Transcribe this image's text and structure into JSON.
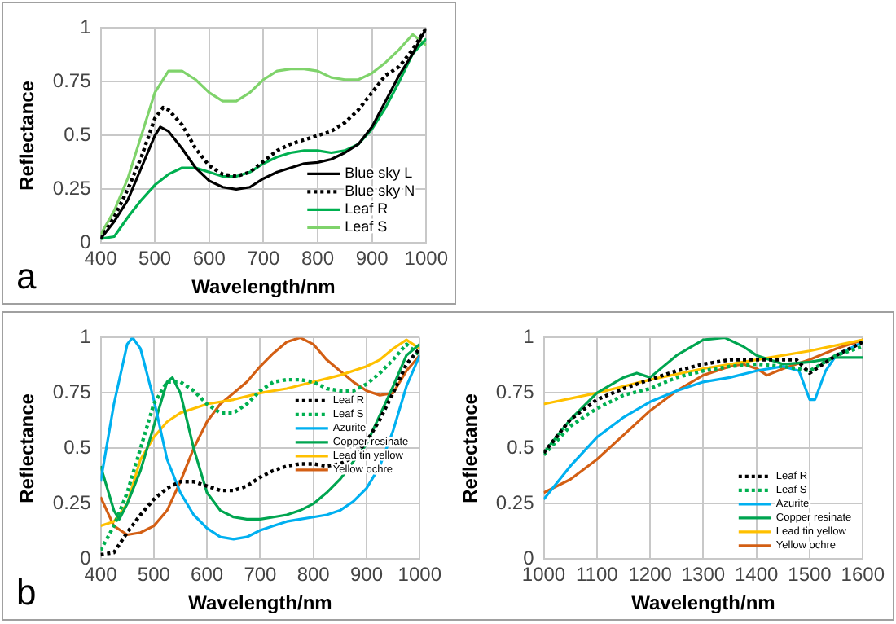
{
  "chart_data": [
    {
      "type": "line",
      "xlabel": "Wavelength/nm",
      "ylabel": "Reflectance",
      "xlim": [
        400,
        1000
      ],
      "xticks": [
        400,
        500,
        600,
        700,
        800,
        900,
        1000
      ],
      "ylim": [
        0,
        1
      ],
      "yticks": [
        0,
        0.25,
        0.5,
        0.75,
        1
      ],
      "grid": true,
      "legend": "bottom right",
      "annotations": [
        "a"
      ],
      "series": [
        {
          "name": "Blue sky L",
          "color": "#000000",
          "line_style": "solid",
          "x": [
            400,
            425,
            450,
            475,
            500,
            510,
            525,
            550,
            575,
            600,
            625,
            650,
            675,
            700,
            725,
            750,
            775,
            800,
            825,
            850,
            875,
            900,
            925,
            950,
            975,
            1000
          ],
          "values": [
            0.02,
            0.1,
            0.2,
            0.35,
            0.5,
            0.54,
            0.52,
            0.44,
            0.35,
            0.29,
            0.26,
            0.25,
            0.26,
            0.3,
            0.33,
            0.35,
            0.37,
            0.375,
            0.39,
            0.42,
            0.46,
            0.54,
            0.66,
            0.78,
            0.88,
            1.0
          ]
        },
        {
          "name": "Blue sky N",
          "color": "#000000",
          "line_style": "dotted",
          "x": [
            400,
            425,
            450,
            475,
            500,
            515,
            525,
            550,
            575,
            600,
            625,
            650,
            675,
            700,
            725,
            750,
            775,
            800,
            825,
            850,
            875,
            900,
            925,
            950,
            975,
            1000
          ],
          "values": [
            0.02,
            0.12,
            0.25,
            0.4,
            0.58,
            0.63,
            0.62,
            0.55,
            0.44,
            0.36,
            0.32,
            0.31,
            0.33,
            0.38,
            0.43,
            0.46,
            0.48,
            0.5,
            0.52,
            0.56,
            0.62,
            0.7,
            0.78,
            0.82,
            0.9,
            1.0
          ]
        },
        {
          "name": "Leaf R",
          "color": "#00b050",
          "line_style": "solid",
          "x": [
            400,
            425,
            450,
            475,
            500,
            525,
            550,
            575,
            600,
            625,
            650,
            675,
            700,
            725,
            750,
            775,
            800,
            825,
            850,
            875,
            900,
            925,
            950,
            975,
            1000
          ],
          "values": [
            0.02,
            0.03,
            0.12,
            0.2,
            0.27,
            0.32,
            0.35,
            0.35,
            0.33,
            0.31,
            0.31,
            0.33,
            0.37,
            0.4,
            0.42,
            0.43,
            0.43,
            0.42,
            0.43,
            0.46,
            0.53,
            0.63,
            0.75,
            0.88,
            0.95
          ]
        },
        {
          "name": "Leaf S",
          "color": "#7fd36b",
          "line_style": "solid",
          "x": [
            400,
            425,
            450,
            475,
            500,
            525,
            550,
            575,
            600,
            625,
            650,
            675,
            700,
            725,
            750,
            775,
            800,
            825,
            850,
            875,
            900,
            925,
            950,
            975,
            1000
          ],
          "values": [
            0.04,
            0.15,
            0.3,
            0.5,
            0.7,
            0.8,
            0.8,
            0.76,
            0.7,
            0.66,
            0.66,
            0.7,
            0.76,
            0.8,
            0.81,
            0.81,
            0.8,
            0.77,
            0.76,
            0.76,
            0.79,
            0.84,
            0.9,
            0.97,
            0.92
          ]
        }
      ]
    },
    {
      "type": "line",
      "xlabel": "Wavelength/nm",
      "ylabel": "Reflectance",
      "xlim": [
        400,
        1000
      ],
      "xticks": [
        400,
        500,
        600,
        700,
        800,
        900,
        1000
      ],
      "ylim": [
        0,
        1
      ],
      "yticks": [
        0,
        0.25,
        0.5,
        0.75,
        1
      ],
      "grid": true,
      "legend": "right",
      "annotations": [
        "b"
      ],
      "series": [
        {
          "name": "Leaf R",
          "color": "#000000",
          "line_style": "dotted",
          "x": [
            400,
            425,
            450,
            475,
            500,
            525,
            550,
            575,
            600,
            625,
            650,
            675,
            700,
            725,
            750,
            775,
            800,
            825,
            850,
            875,
            900,
            925,
            950,
            975,
            1000
          ],
          "values": [
            0.02,
            0.03,
            0.12,
            0.2,
            0.27,
            0.32,
            0.35,
            0.35,
            0.33,
            0.31,
            0.31,
            0.33,
            0.37,
            0.4,
            0.42,
            0.43,
            0.43,
            0.42,
            0.43,
            0.46,
            0.53,
            0.63,
            0.75,
            0.88,
            0.95
          ]
        },
        {
          "name": "Leaf S",
          "color": "#00b050",
          "line_style": "dotted",
          "x": [
            400,
            425,
            450,
            475,
            500,
            525,
            550,
            575,
            600,
            625,
            650,
            675,
            700,
            725,
            750,
            775,
            800,
            825,
            850,
            875,
            900,
            925,
            950,
            975,
            1000
          ],
          "values": [
            0.04,
            0.15,
            0.3,
            0.5,
            0.7,
            0.8,
            0.8,
            0.76,
            0.7,
            0.66,
            0.66,
            0.7,
            0.76,
            0.8,
            0.81,
            0.81,
            0.8,
            0.77,
            0.76,
            0.76,
            0.79,
            0.84,
            0.9,
            0.97,
            0.92
          ]
        },
        {
          "name": "Azurite",
          "color": "#00b0f0",
          "line_style": "solid",
          "x": [
            400,
            425,
            450,
            460,
            475,
            500,
            525,
            550,
            575,
            600,
            625,
            650,
            675,
            700,
            725,
            750,
            775,
            800,
            825,
            850,
            875,
            900,
            925,
            950,
            975,
            1000
          ],
          "values": [
            0.35,
            0.7,
            0.97,
            1.0,
            0.95,
            0.72,
            0.45,
            0.3,
            0.2,
            0.14,
            0.1,
            0.09,
            0.1,
            0.13,
            0.15,
            0.17,
            0.18,
            0.19,
            0.2,
            0.22,
            0.26,
            0.32,
            0.42,
            0.58,
            0.78,
            0.92
          ]
        },
        {
          "name": "Copper resinate",
          "color": "#00a550",
          "line_style": "solid",
          "x": [
            400,
            425,
            435,
            450,
            475,
            500,
            525,
            535,
            550,
            575,
            600,
            625,
            650,
            675,
            700,
            725,
            750,
            775,
            800,
            825,
            850,
            875,
            900,
            925,
            950,
            975,
            1000
          ],
          "values": [
            0.42,
            0.22,
            0.18,
            0.25,
            0.4,
            0.6,
            0.8,
            0.82,
            0.75,
            0.5,
            0.3,
            0.22,
            0.19,
            0.18,
            0.18,
            0.19,
            0.2,
            0.22,
            0.25,
            0.3,
            0.36,
            0.44,
            0.52,
            0.65,
            0.78,
            0.92,
            0.97
          ]
        },
        {
          "name": "Lead tin yellow",
          "color": "#ffc000",
          "line_style": "solid",
          "x": [
            400,
            425,
            450,
            475,
            500,
            525,
            550,
            575,
            600,
            650,
            700,
            750,
            800,
            850,
            900,
            925,
            950,
            975,
            1000
          ],
          "values": [
            0.15,
            0.17,
            0.25,
            0.45,
            0.55,
            0.62,
            0.66,
            0.68,
            0.7,
            0.72,
            0.75,
            0.77,
            0.8,
            0.83,
            0.87,
            0.9,
            0.95,
            0.99,
            0.95
          ]
        },
        {
          "name": "Yellow ochre",
          "color": "#d35f14",
          "line_style": "solid",
          "x": [
            400,
            425,
            450,
            475,
            500,
            525,
            550,
            575,
            600,
            625,
            650,
            675,
            700,
            725,
            750,
            775,
            800,
            825,
            850,
            875,
            900,
            925,
            950,
            975,
            1000
          ],
          "values": [
            0.28,
            0.15,
            0.11,
            0.12,
            0.15,
            0.22,
            0.35,
            0.5,
            0.62,
            0.7,
            0.75,
            0.8,
            0.87,
            0.93,
            0.98,
            1.0,
            0.97,
            0.9,
            0.85,
            0.8,
            0.76,
            0.74,
            0.75,
            0.85,
            0.92
          ]
        }
      ]
    },
    {
      "type": "line",
      "xlabel": "Wavelength/nm",
      "ylabel": "Reflectance",
      "xlim": [
        1000,
        1600
      ],
      "xticks": [
        1000,
        1100,
        1200,
        1300,
        1400,
        1500,
        1600
      ],
      "ylim": [
        0,
        1
      ],
      "yticks": [
        0,
        0.25,
        0.5,
        0.75,
        1
      ],
      "grid": true,
      "legend": "bottom right",
      "series": [
        {
          "name": "Leaf R",
          "color": "#000000",
          "line_style": "dotted",
          "x": [
            1000,
            1050,
            1100,
            1150,
            1200,
            1250,
            1300,
            1350,
            1400,
            1450,
            1475,
            1500,
            1550,
            1600
          ],
          "values": [
            0.48,
            0.63,
            0.72,
            0.77,
            0.81,
            0.85,
            0.88,
            0.9,
            0.9,
            0.9,
            0.9,
            0.84,
            0.92,
            0.98
          ]
        },
        {
          "name": "Leaf S",
          "color": "#00b050",
          "line_style": "dotted",
          "x": [
            1000,
            1050,
            1100,
            1150,
            1200,
            1250,
            1300,
            1350,
            1400,
            1450,
            1500,
            1550,
            1600
          ],
          "values": [
            0.47,
            0.6,
            0.68,
            0.74,
            0.77,
            0.82,
            0.85,
            0.87,
            0.88,
            0.87,
            0.85,
            0.92,
            0.96
          ]
        },
        {
          "name": "Azurite",
          "color": "#00b0f0",
          "line_style": "solid",
          "x": [
            1000,
            1050,
            1100,
            1150,
            1200,
            1250,
            1300,
            1350,
            1400,
            1450,
            1480,
            1500,
            1510,
            1530,
            1550,
            1600
          ],
          "values": [
            0.27,
            0.42,
            0.55,
            0.64,
            0.71,
            0.76,
            0.8,
            0.82,
            0.85,
            0.87,
            0.85,
            0.72,
            0.72,
            0.85,
            0.92,
            0.98
          ]
        },
        {
          "name": "Copper resinate",
          "color": "#00a550",
          "line_style": "solid",
          "x": [
            1000,
            1050,
            1100,
            1150,
            1175,
            1200,
            1250,
            1300,
            1340,
            1375,
            1400,
            1450,
            1500,
            1550,
            1600
          ],
          "values": [
            0.48,
            0.63,
            0.75,
            0.82,
            0.84,
            0.82,
            0.92,
            0.99,
            1.0,
            0.96,
            0.92,
            0.88,
            0.89,
            0.91,
            0.91
          ]
        },
        {
          "name": "Lead tin yellow",
          "color": "#ffc000",
          "line_style": "solid",
          "x": [
            1000,
            1100,
            1200,
            1300,
            1400,
            1500,
            1600
          ],
          "values": [
            0.7,
            0.75,
            0.81,
            0.86,
            0.9,
            0.94,
            0.99
          ]
        },
        {
          "name": "Yellow ochre",
          "color": "#d35f14",
          "line_style": "solid",
          "x": [
            1000,
            1050,
            1100,
            1150,
            1200,
            1250,
            1300,
            1350,
            1375,
            1400,
            1420,
            1450,
            1500,
            1550,
            1600
          ],
          "values": [
            0.3,
            0.36,
            0.45,
            0.56,
            0.67,
            0.76,
            0.83,
            0.87,
            0.88,
            0.86,
            0.83,
            0.86,
            0.9,
            0.95,
            0.99
          ]
        }
      ]
    }
  ]
}
